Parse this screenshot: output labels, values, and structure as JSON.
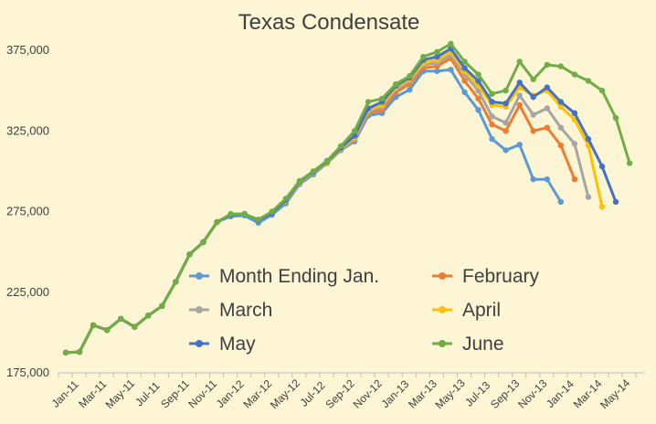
{
  "chart_data": {
    "type": "line",
    "title": "Texas Condensate",
    "xlabel": "",
    "ylabel": "",
    "ylim": [
      175000,
      395000
    ],
    "yticks": [
      "175,000",
      "225,000",
      "275,000",
      "325,000",
      "375,000"
    ],
    "ytick_values": [
      175000,
      225000,
      275000,
      325000,
      375000
    ],
    "x": [
      "Jan-11",
      "Feb-11",
      "Mar-11",
      "Apr-11",
      "May-11",
      "Jun-11",
      "Jul-11",
      "Aug-11",
      "Sep-11",
      "Oct-11",
      "Nov-11",
      "Dec-11",
      "Jan-12",
      "Feb-12",
      "Mar-12",
      "Apr-12",
      "May-12",
      "Jun-12",
      "Jul-12",
      "Aug-12",
      "Sep-12",
      "Oct-12",
      "Nov-12",
      "Dec-12",
      "Jan-13",
      "Feb-13",
      "Mar-13",
      "Apr-13",
      "May-13",
      "Jun-13",
      "Jul-13",
      "Aug-13",
      "Sep-13",
      "Oct-13",
      "Nov-13",
      "Dec-13",
      "Jan-14",
      "Feb-14",
      "Mar-14",
      "Apr-14",
      "May-14",
      "Jun-14"
    ],
    "xtick_labels": [
      "Jan-11",
      "Mar-11",
      "May-11",
      "Jul-11",
      "Sep-11",
      "Nov-11",
      "Jan-12",
      "Mar-12",
      "May-12",
      "Jul-12",
      "Sep-12",
      "Nov-12",
      "Jan-13",
      "Mar-13",
      "May-13",
      "Jul-13",
      "Sep-13",
      "Nov-13",
      "Jan-14",
      "Mar-14",
      "May-14"
    ],
    "grid": false,
    "legend": "inside-lower-center",
    "series": [
      {
        "name": "Month Ending Jan.",
        "color": "#5b9bd5",
        "values": [
          187500,
          188000,
          204500,
          201500,
          208500,
          203500,
          210500,
          216500,
          231500,
          248500,
          256000,
          268500,
          272000,
          272500,
          268000,
          273000,
          280000,
          292000,
          298000,
          305000,
          313000,
          318500,
          334500,
          336000,
          346000,
          350500,
          362000,
          362000,
          363000,
          349000,
          338000,
          320000,
          313000,
          316500,
          295000,
          295000,
          281000,
          null,
          null,
          null,
          null,
          null
        ]
      },
      {
        "name": "February",
        "color": "#ed7d31",
        "values": [
          187500,
          188000,
          204500,
          201500,
          208500,
          203500,
          210500,
          216500,
          231500,
          248500,
          256000,
          268500,
          273000,
          273500,
          269500,
          274000,
          281500,
          293000,
          299000,
          305500,
          313500,
          319500,
          336000,
          338000,
          349000,
          354000,
          364000,
          365000,
          370000,
          356000,
          345000,
          329000,
          325000,
          341000,
          325000,
          327000,
          316000,
          295000,
          null,
          null,
          null,
          null
        ]
      },
      {
        "name": "March",
        "color": "#a5a5a5",
        "values": [
          187500,
          188000,
          204500,
          201500,
          208500,
          203500,
          210500,
          216500,
          231500,
          248500,
          256000,
          268500,
          273000,
          273500,
          269500,
          274000,
          281500,
          293000,
          299000,
          305500,
          313500,
          320000,
          337000,
          340000,
          351000,
          356000,
          366000,
          367000,
          372000,
          360000,
          350000,
          334000,
          330000,
          347000,
          335000,
          339000,
          327000,
          317000,
          284000,
          null,
          null,
          null
        ]
      },
      {
        "name": "April",
        "color": "#ffc000",
        "values": [
          187500,
          188000,
          204500,
          201500,
          208500,
          203500,
          210500,
          216500,
          231500,
          248500,
          256000,
          268500,
          273000,
          273500,
          269500,
          274000,
          281500,
          293000,
          299000,
          305500,
          314000,
          321000,
          338000,
          341000,
          352000,
          357000,
          367000,
          369000,
          374000,
          362000,
          353000,
          341000,
          340000,
          352000,
          347000,
          350000,
          340000,
          332000,
          316000,
          278000,
          null,
          null
        ]
      },
      {
        "name": "May",
        "color": "#4472c4",
        "values": [
          187500,
          188000,
          204500,
          201500,
          208500,
          203500,
          210500,
          216500,
          231500,
          248500,
          256000,
          268500,
          273000,
          273500,
          269500,
          274000,
          282000,
          293500,
          299500,
          306000,
          314500,
          322000,
          339000,
          343000,
          353000,
          358000,
          369000,
          371000,
          376000,
          364000,
          356000,
          343000,
          342000,
          355000,
          346000,
          352000,
          343000,
          336000,
          320000,
          303000,
          281000,
          null
        ]
      },
      {
        "name": "June",
        "color": "#70ad47",
        "values": [
          187500,
          188000,
          204500,
          201500,
          208500,
          203500,
          210500,
          216500,
          231500,
          248500,
          256000,
          268500,
          273500,
          273500,
          270000,
          275000,
          283000,
          294000,
          300000,
          306500,
          315500,
          325000,
          343000,
          345000,
          354000,
          359000,
          371000,
          374000,
          379000,
          368000,
          360000,
          348000,
          350000,
          368000,
          357000,
          366000,
          365000,
          360000,
          356000,
          350000,
          333000,
          305000
        ]
      }
    ]
  }
}
